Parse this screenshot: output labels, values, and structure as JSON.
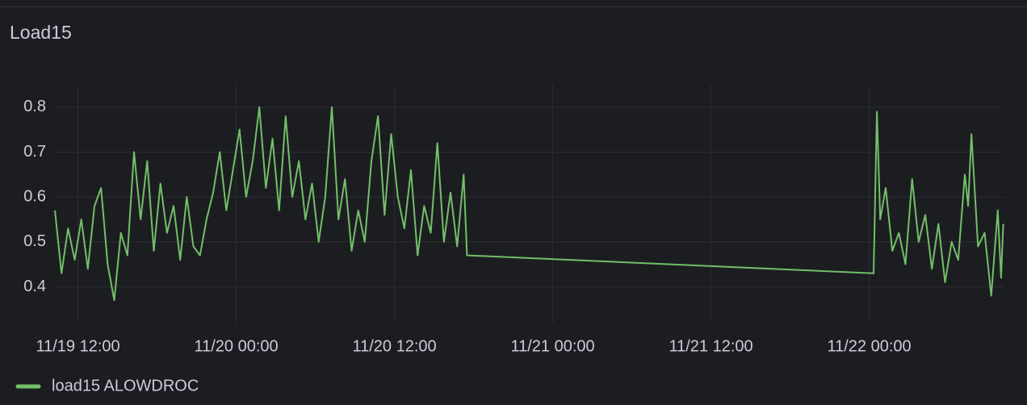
{
  "chart_data": {
    "type": "line",
    "title": "Load15",
    "x": [
      "11/19 10:15",
      "11/19 10:45",
      "11/19 11:15",
      "11/19 11:45",
      "11/19 12:15",
      "11/19 12:45",
      "11/19 13:15",
      "11/19 13:45",
      "11/19 14:15",
      "11/19 14:45",
      "11/19 15:15",
      "11/19 15:45",
      "11/19 16:15",
      "11/19 16:45",
      "11/19 17:15",
      "11/19 17:45",
      "11/19 18:15",
      "11/19 18:45",
      "11/19 19:15",
      "11/19 19:45",
      "11/19 20:15",
      "11/19 20:45",
      "11/19 21:15",
      "11/19 21:45",
      "11/19 22:15",
      "11/19 22:45",
      "11/19 23:15",
      "11/19 23:45",
      "11/20 00:15",
      "11/20 00:45",
      "11/20 01:15",
      "11/20 01:45",
      "11/20 02:15",
      "11/20 02:45",
      "11/20 03:15",
      "11/20 03:45",
      "11/20 04:15",
      "11/20 04:45",
      "11/20 05:15",
      "11/20 05:45",
      "11/20 06:15",
      "11/20 06:45",
      "11/20 07:15",
      "11/20 07:45",
      "11/20 08:15",
      "11/20 08:45",
      "11/20 09:15",
      "11/20 09:45",
      "11/20 10:15",
      "11/20 10:45",
      "11/20 11:15",
      "11/20 11:45",
      "11/20 12:15",
      "11/20 12:45",
      "11/20 13:15",
      "11/20 13:45",
      "11/20 14:15",
      "11/20 14:45",
      "11/20 15:15",
      "11/20 15:45",
      "11/20 16:15",
      "11/20 16:45",
      "11/20 17:15",
      "11/20 17:30",
      "11/22 00:20",
      "11/22 00:35",
      "11/22 00:50",
      "11/22 01:15",
      "11/22 01:45",
      "11/22 02:15",
      "11/22 02:45",
      "11/22 03:15",
      "11/22 03:45",
      "11/22 04:15",
      "11/22 04:45",
      "11/22 05:15",
      "11/22 05:45",
      "11/22 06:15",
      "11/22 06:45",
      "11/22 07:15",
      "11/22 07:30",
      "11/22 07:45",
      "11/22 08:15",
      "11/22 08:45",
      "11/22 09:15",
      "11/22 09:45",
      "11/22 10:00",
      "11/22 10:10"
    ],
    "series": [
      {
        "name": "load15 ALOWDROC",
        "color": "#73bf69",
        "values": [
          0.57,
          0.43,
          0.53,
          0.46,
          0.55,
          0.44,
          0.58,
          0.62,
          0.45,
          0.37,
          0.52,
          0.47,
          0.7,
          0.55,
          0.68,
          0.48,
          0.63,
          0.52,
          0.58,
          0.46,
          0.6,
          0.49,
          0.47,
          0.55,
          0.61,
          0.7,
          0.57,
          0.66,
          0.75,
          0.6,
          0.68,
          0.8,
          0.62,
          0.73,
          0.57,
          0.78,
          0.6,
          0.68,
          0.55,
          0.63,
          0.5,
          0.6,
          0.8,
          0.55,
          0.64,
          0.48,
          0.57,
          0.5,
          0.68,
          0.78,
          0.56,
          0.74,
          0.6,
          0.53,
          0.66,
          0.47,
          0.58,
          0.52,
          0.72,
          0.5,
          0.61,
          0.49,
          0.65,
          0.47,
          0.43,
          0.79,
          0.55,
          0.62,
          0.48,
          0.52,
          0.45,
          0.64,
          0.5,
          0.56,
          0.44,
          0.54,
          0.41,
          0.5,
          0.46,
          0.65,
          0.58,
          0.74,
          0.49,
          0.52,
          0.38,
          0.57,
          0.42,
          0.54
        ]
      }
    ],
    "xlim": [
      "11/19 10:15",
      "11/22 10:15"
    ],
    "xticks": [
      "11/19 12:00",
      "11/20 00:00",
      "11/20 12:00",
      "11/21 00:00",
      "11/21 12:00",
      "11/22 00:00"
    ],
    "ylim": [
      0.32,
      0.85
    ],
    "yticks": [
      0.4,
      0.5,
      0.6,
      0.7,
      0.8
    ],
    "grid": true
  }
}
